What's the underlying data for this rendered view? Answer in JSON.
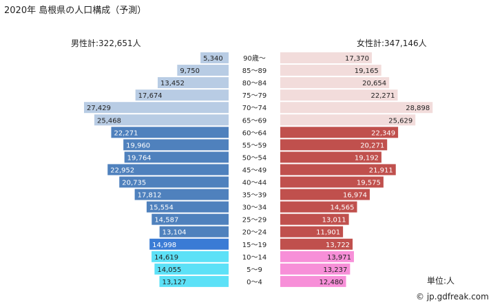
{
  "chart_data": {
    "type": "bar",
    "title": "2020年 島根県の人口構成（予測）",
    "male_total_label": "男性計:322,651人",
    "female_total_label": "女性計:347,146人",
    "unit_label": "単位:人",
    "source_label": "© jp.gdfreak.com",
    "categories": [
      "90歳～",
      "85～89",
      "80～84",
      "75～79",
      "70～74",
      "65～69",
      "60～64",
      "55～59",
      "50～54",
      "45～49",
      "40～44",
      "35～39",
      "30～34",
      "25～29",
      "20～24",
      "15～19",
      "10～14",
      "5～9",
      "0～4"
    ],
    "series": [
      {
        "name": "男性",
        "values": [
          5340,
          9750,
          13452,
          17674,
          27429,
          25468,
          22271,
          19960,
          19764,
          22952,
          20735,
          17812,
          15554,
          14587,
          13104,
          14998,
          14619,
          14055,
          13127
        ],
        "labels": [
          "5,340",
          "9,750",
          "13,452",
          "17,674",
          "27,429",
          "25,468",
          "22,271",
          "19,960",
          "19,764",
          "22,952",
          "20,735",
          "17,812",
          "15,554",
          "14,587",
          "13,104",
          "14,998",
          "14,619",
          "14,055",
          "13,127"
        ]
      },
      {
        "name": "女性",
        "values": [
          17370,
          19165,
          20654,
          22271,
          28898,
          25629,
          22349,
          20271,
          19192,
          21911,
          19575,
          16974,
          14565,
          13011,
          11901,
          13722,
          13971,
          13237,
          12480
        ],
        "labels": [
          "17,370",
          "19,165",
          "20,654",
          "22,271",
          "28,898",
          "25,629",
          "22,349",
          "20,271",
          "19,192",
          "21,911",
          "19,575",
          "16,974",
          "14,565",
          "13,011",
          "11,901",
          "13,722",
          "13,971",
          "13,237",
          "12,480"
        ]
      }
    ],
    "colors": {
      "male_elderly": "#b8cce4",
      "male_working": "#4f81bd",
      "male_highlight": "#3a7bd5",
      "male_child": "#5ce1f7",
      "female_elderly": "#f2dcdb",
      "female_working": "#c0504d",
      "female_child": "#f78fd8"
    }
  }
}
